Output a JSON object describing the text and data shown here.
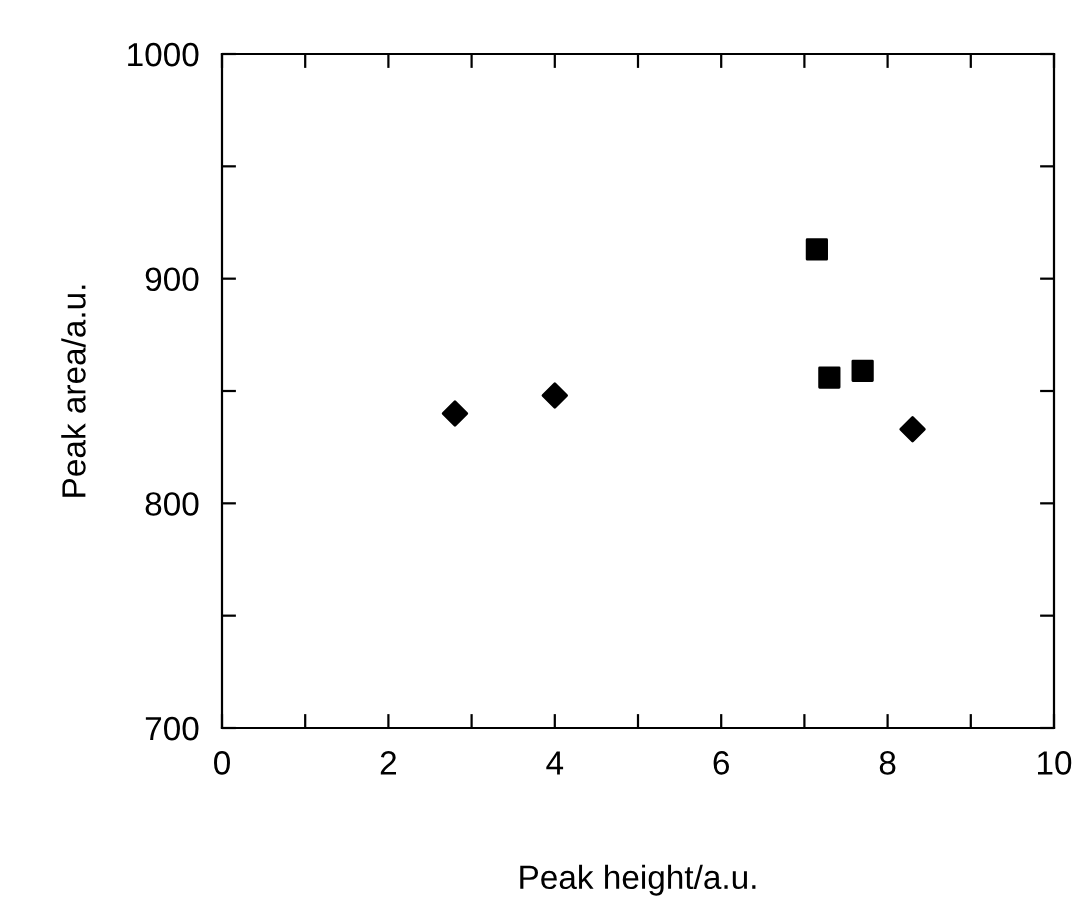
{
  "chart_data": {
    "type": "scatter",
    "xlabel": "Peak height/a.u.",
    "ylabel": "Peak area/a.u.",
    "xlim": [
      0,
      10
    ],
    "ylim": [
      700,
      1000
    ],
    "xticks": [
      0,
      {
        "value": 1,
        "label": null
      },
      2,
      {
        "value": 3,
        "label": null
      },
      4,
      {
        "value": 5,
        "label": null
      },
      6,
      {
        "value": 7,
        "label": null
      },
      8,
      {
        "value": 9,
        "label": null
      },
      10
    ],
    "yticks": [
      700,
      {
        "value": 750,
        "label": null
      },
      800,
      {
        "value": 850,
        "label": null
      },
      900,
      {
        "value": 950,
        "label": null
      },
      1000
    ],
    "grid": false,
    "legend": false,
    "series": [
      {
        "marker": "diamond",
        "color": "#000000",
        "x": [
          2.8,
          4.0,
          8.3
        ],
        "values": [
          840,
          848,
          833
        ]
      },
      {
        "marker": "square",
        "color": "#000000",
        "x": [
          7.15,
          7.3,
          7.7
        ],
        "values": [
          913,
          856,
          859
        ]
      }
    ]
  }
}
